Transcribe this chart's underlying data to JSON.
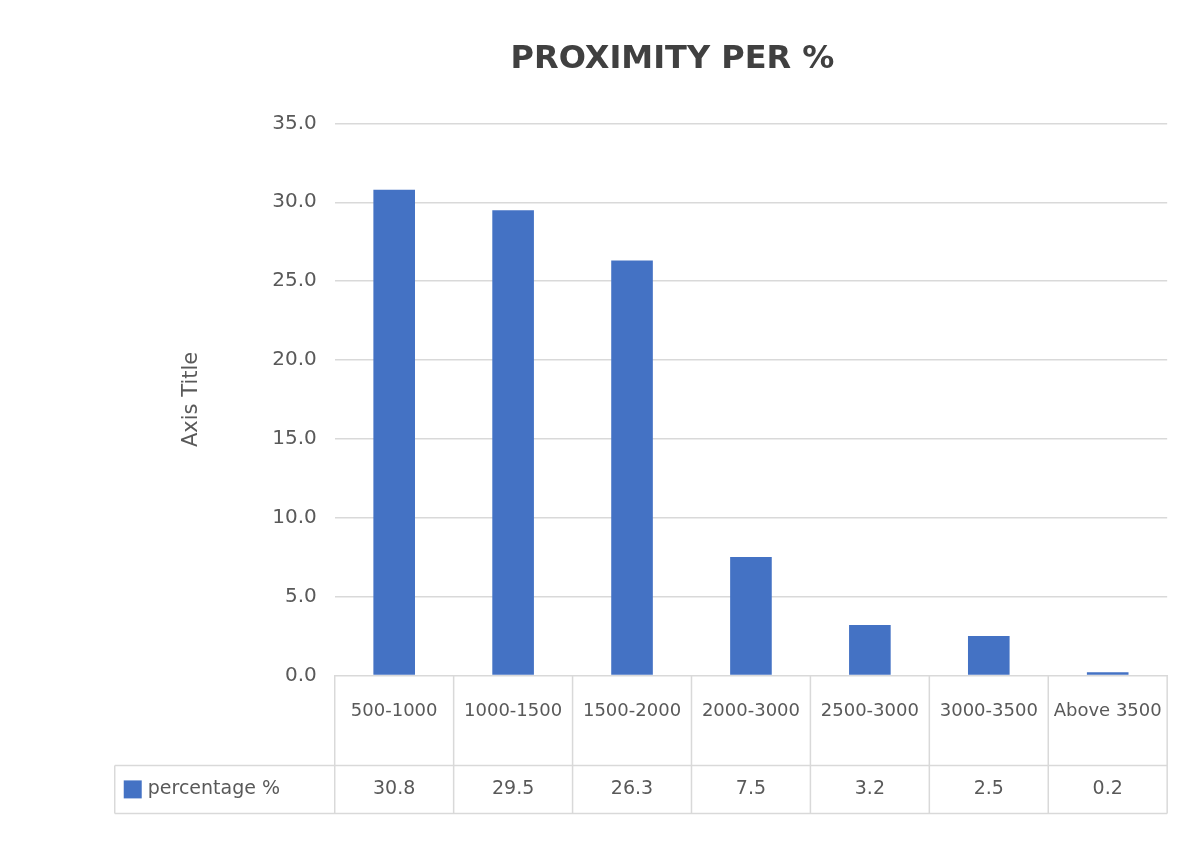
{
  "chart_data": {
    "type": "bar",
    "title": "PROXIMITY PER %",
    "ylabel": "Axis Title",
    "categories": [
      "500-1000",
      "1000-1500",
      "1500-2000",
      "2000-3000",
      "2500-3000",
      "3000-3500",
      "Above 3500"
    ],
    "series": [
      {
        "name": "percentage %",
        "color": "#4472c4",
        "values": [
          30.8,
          29.5,
          26.3,
          7.5,
          3.2,
          2.5,
          0.2
        ]
      }
    ],
    "ylim": [
      0,
      35
    ],
    "yticks": [
      {
        "value": 0,
        "label": "0.0"
      },
      {
        "value": 5,
        "label": "5.0"
      },
      {
        "value": 10,
        "label": "10.0"
      },
      {
        "value": 15,
        "label": "15.0"
      },
      {
        "value": 20,
        "label": "20.0"
      },
      {
        "value": 25,
        "label": "25.0"
      },
      {
        "value": 30,
        "label": "30.0"
      },
      {
        "value": 35,
        "label": "35.0"
      }
    ],
    "grid": "y",
    "data_labels": true,
    "legend": "bottom"
  }
}
